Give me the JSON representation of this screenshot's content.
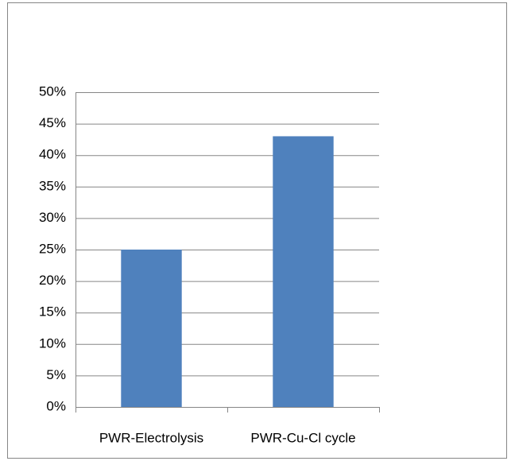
{
  "chart_data": {
    "type": "bar",
    "categories": [
      "PWR-Electrolysis",
      "PWR-Cu-Cl cycle"
    ],
    "values": [
      25,
      43
    ],
    "color": "#4f81bd",
    "ylim": [
      0,
      50
    ],
    "yticks": [
      {
        "value": 0,
        "label": "0%"
      },
      {
        "value": 5,
        "label": "5%"
      },
      {
        "value": 10,
        "label": "10%"
      },
      {
        "value": 15,
        "label": "15%"
      },
      {
        "value": 20,
        "label": "20%"
      },
      {
        "value": 25,
        "label": "25%"
      },
      {
        "value": 30,
        "label": "30%"
      },
      {
        "value": 35,
        "label": "35%"
      },
      {
        "value": 40,
        "label": "40%"
      },
      {
        "value": 45,
        "label": "45%"
      },
      {
        "value": 50,
        "label": "50%"
      }
    ],
    "grid": true
  }
}
